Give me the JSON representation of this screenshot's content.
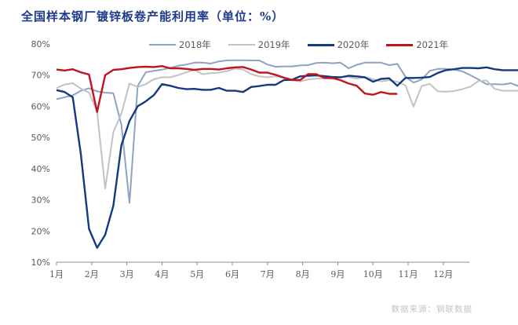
{
  "title": "全国样本钢厂镀锌板卷产能利用率（单位：%）",
  "source": "数据来源：钢联数据",
  "legend": [
    {
      "label": "2018年",
      "color": "#8da2c4"
    },
    {
      "label": "2019年",
      "color": "#c2c2c2"
    },
    {
      "label": "2020年",
      "color": "#133a80"
    },
    {
      "label": "2021年",
      "color": "#c0141c"
    }
  ],
  "chart_data": {
    "type": "line",
    "title": "全国样本钢厂镀锌板卷产能利用率（单位：%）",
    "xlabel": "",
    "ylabel": "",
    "ylim": [
      10,
      80
    ],
    "yticks": [
      "10%",
      "20%",
      "30%",
      "40%",
      "50%",
      "60%",
      "70%",
      "80%"
    ],
    "xticks": [
      "1月",
      "2月",
      "3月",
      "4月",
      "5月",
      "6月",
      "7月",
      "8月",
      "9月",
      "10月",
      "11月",
      "12月"
    ],
    "x_unit": "week",
    "grid": false,
    "legend_position": "top",
    "series": [
      {
        "name": "2018年",
        "color": "#8da2c4",
        "values": [
          62.3,
          62.9,
          63.5,
          65.0,
          65.8,
          64.8,
          64.4,
          64.2,
          54.0,
          29.0,
          66.5,
          70.9,
          71.4,
          71.8,
          72.3,
          73.0,
          73.4,
          74.0,
          74.0,
          73.7,
          74.4,
          74.7,
          74.8,
          74.8,
          74.7,
          74.7,
          73.4,
          72.7,
          72.8,
          72.8,
          73.1,
          73.2,
          73.9,
          74.0,
          73.8,
          74.0,
          72.2,
          73.3,
          74.0,
          74.0,
          74.0,
          73.2,
          73.6,
          69.5,
          67.6,
          68.6,
          71.4,
          72.0,
          72.0,
          71.8,
          71.2,
          70.0,
          68.6,
          67.1,
          67.1,
          67.0,
          67.4,
          66.4
        ]
      },
      {
        "name": "2019年",
        "color": "#c2c2c2",
        "values": [
          65.8,
          67.0,
          67.4,
          65.7,
          64.4,
          58.4,
          33.6,
          51.7,
          57.7,
          67.3,
          66.2,
          67.1,
          68.7,
          69.3,
          69.3,
          70.0,
          70.9,
          71.7,
          70.3,
          70.6,
          70.8,
          71.3,
          72.1,
          71.8,
          70.3,
          69.6,
          69.3,
          69.6,
          69.2,
          68.3,
          68.0,
          68.6,
          68.9,
          69.0,
          68.8,
          69.4,
          69.4,
          68.9,
          69.4,
          68.7,
          68.0,
          68.4,
          67.9,
          66.7,
          59.9,
          66.5,
          67.2,
          64.8,
          64.7,
          64.9,
          65.5,
          66.3,
          68.1,
          68.3,
          65.6,
          65.0,
          65.0,
          65.0
        ]
      },
      {
        "name": "2020年",
        "color": "#133a80",
        "values": [
          65.2,
          64.6,
          62.9,
          44.7,
          20.7,
          14.6,
          18.8,
          28.1,
          47.6,
          55.3,
          60.0,
          61.6,
          63.6,
          67.1,
          66.6,
          65.9,
          65.5,
          65.6,
          65.3,
          65.3,
          65.9,
          65.0,
          65.0,
          64.6,
          66.2,
          66.5,
          66.9,
          66.9,
          68.4,
          68.5,
          69.6,
          69.8,
          69.9,
          69.7,
          69.4,
          69.3,
          69.8,
          69.6,
          69.3,
          67.9,
          68.8,
          69.0,
          66.6,
          69.1,
          69.1,
          69.2,
          69.4,
          70.7,
          71.6,
          71.9,
          72.3,
          72.3,
          72.2,
          72.5,
          71.9,
          71.6,
          71.6,
          71.6
        ]
      },
      {
        "name": "2021年",
        "color": "#c0141c",
        "values": [
          71.8,
          71.5,
          71.9,
          70.9,
          70.2,
          58.2,
          70.0,
          71.7,
          71.9,
          72.3,
          72.6,
          72.7,
          72.6,
          72.9,
          72.2,
          72.2,
          72.0,
          71.7,
          72.0,
          72.0,
          71.8,
          72.2,
          72.5,
          72.6,
          71.8,
          70.8,
          70.8,
          70.1,
          69.2,
          68.5,
          68.4,
          70.3,
          70.3,
          69.1,
          69.1,
          68.4,
          67.3,
          66.6,
          64.1,
          63.7,
          64.6,
          64.0,
          64.0
        ]
      }
    ]
  }
}
